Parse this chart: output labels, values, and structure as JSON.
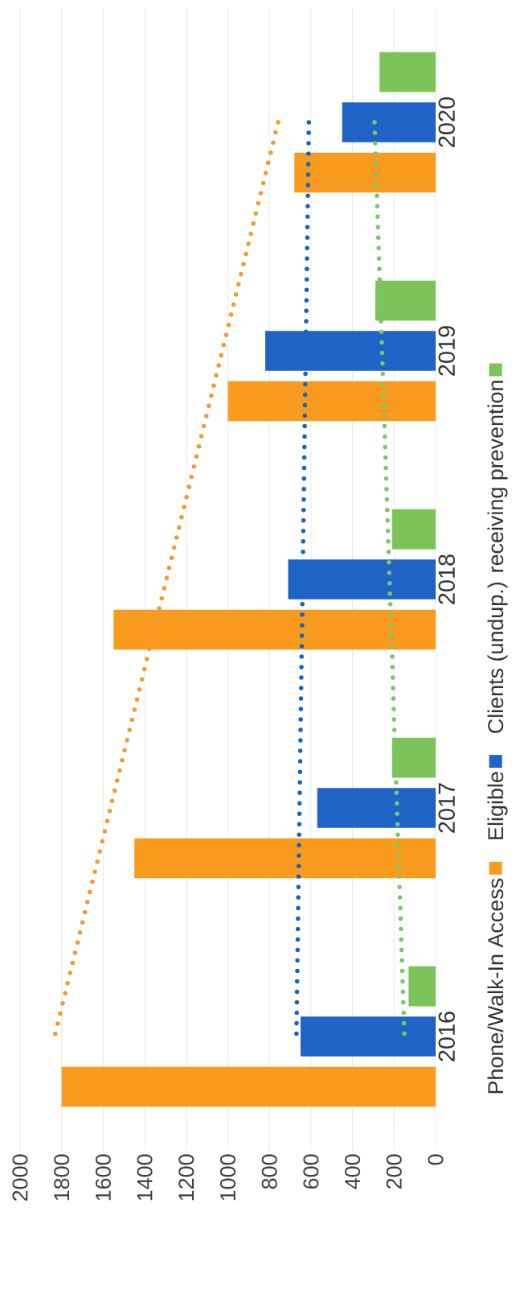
{
  "chart_data": {
    "type": "bar",
    "orientation": "horizontal",
    "categories": [
      "2020",
      "2019",
      "2018",
      "2017",
      "2016"
    ],
    "xlim": [
      2000,
      0
    ],
    "xticks": [
      0,
      200,
      400,
      600,
      800,
      1000,
      1200,
      1400,
      1600,
      1800,
      2000
    ],
    "grid": "x",
    "legend": "right",
    "series": [
      {
        "name": "Phone/Walk-In Access",
        "color": "#f89b1e",
        "values": [
          680,
          1000,
          1550,
          1450,
          1800
        ]
      },
      {
        "name": "Eligible",
        "color": "#1f63c6",
        "values": [
          450,
          820,
          710,
          570,
          650
        ]
      },
      {
        "name": "Clients (undup.) receiving prevention",
        "color": "#7cc35a",
        "values": [
          270,
          290,
          210,
          210,
          130
        ]
      },
      {
        "type": "line",
        "line_style": "dotted",
        "color": "#f29a2e",
        "values": [
          758,
          1027,
          1296,
          1565,
          1834
        ]
      },
      {
        "type": "line",
        "line_style": "dotted",
        "color": "#1464c0",
        "values": [
          610,
          625,
          640,
          655,
          670
        ]
      },
      {
        "type": "line",
        "line_style": "dotted",
        "color": "#78c86a",
        "values": [
          294,
          258,
          222,
          186,
          150
        ]
      }
    ]
  }
}
